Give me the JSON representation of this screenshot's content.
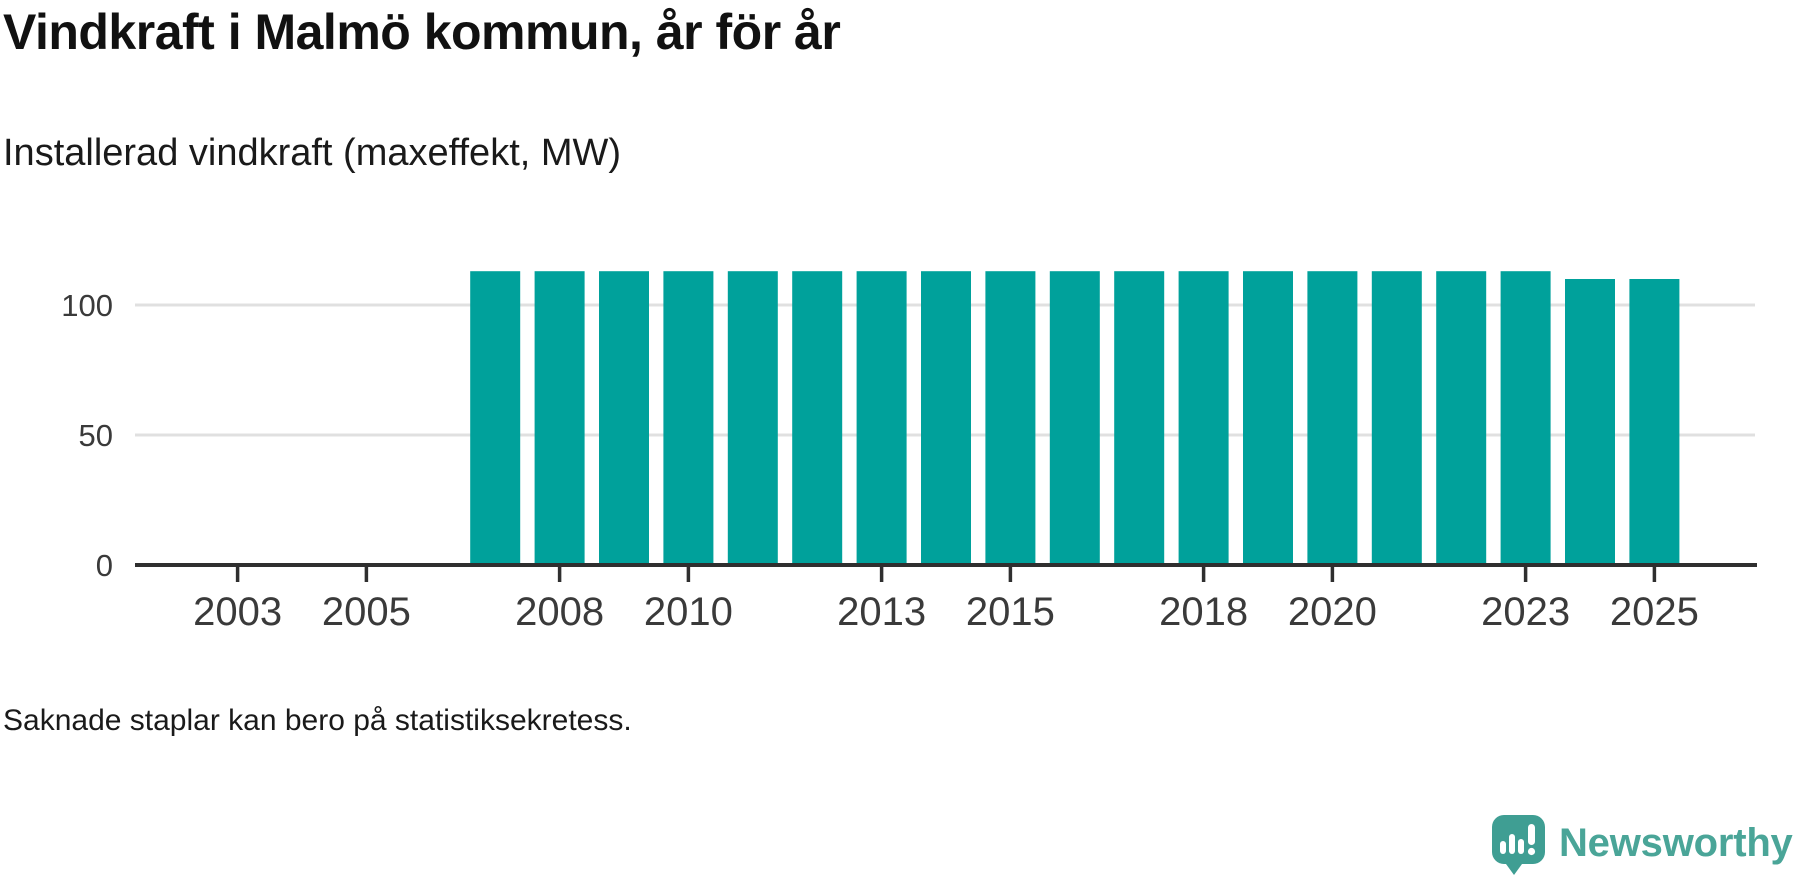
{
  "chart_data": {
    "type": "bar",
    "title": "Vindkraft i Malmö kommun, år för år",
    "subtitle": "Installerad vindkraft (maxeffekt, MW)",
    "unit": "MW",
    "categories": [
      2007,
      2008,
      2009,
      2010,
      2011,
      2012,
      2013,
      2014,
      2015,
      2016,
      2017,
      2018,
      2019,
      2020,
      2021,
      2022,
      2023,
      2024,
      2025
    ],
    "values": [
      113,
      113,
      113,
      113,
      113,
      113,
      113,
      113,
      113,
      113,
      113,
      113,
      113,
      113,
      113,
      113,
      113,
      110,
      110
    ],
    "missing_years_without_bars": [
      2002,
      2003,
      2004,
      2005,
      2006
    ],
    "x_domain": [
      2002,
      2026
    ],
    "x_ticks": [
      2003,
      2005,
      2008,
      2010,
      2013,
      2015,
      2018,
      2020,
      2023,
      2025
    ],
    "y_ticks": [
      0,
      50,
      100
    ],
    "ylim": [
      0,
      135
    ],
    "grid": "horizontal-only",
    "legend": "none",
    "bar_color": "#00a19b"
  },
  "footnote": {
    "text": "Saknade staplar kan bero på statistiksekretess."
  },
  "branding": {
    "wordmark": "Newsworthy",
    "logo_icon": "speech-bubble-bar-chart-icon",
    "brand_color": "#4aa598"
  },
  "colors": {
    "bar": "#00a19b",
    "grid": "#e0e0e0",
    "axis": "#2f2f2f",
    "tick_label": "#3a3a3a",
    "text": "#1a1a1a",
    "background": "#ffffff",
    "logo_bubble": "#3f9e93"
  }
}
